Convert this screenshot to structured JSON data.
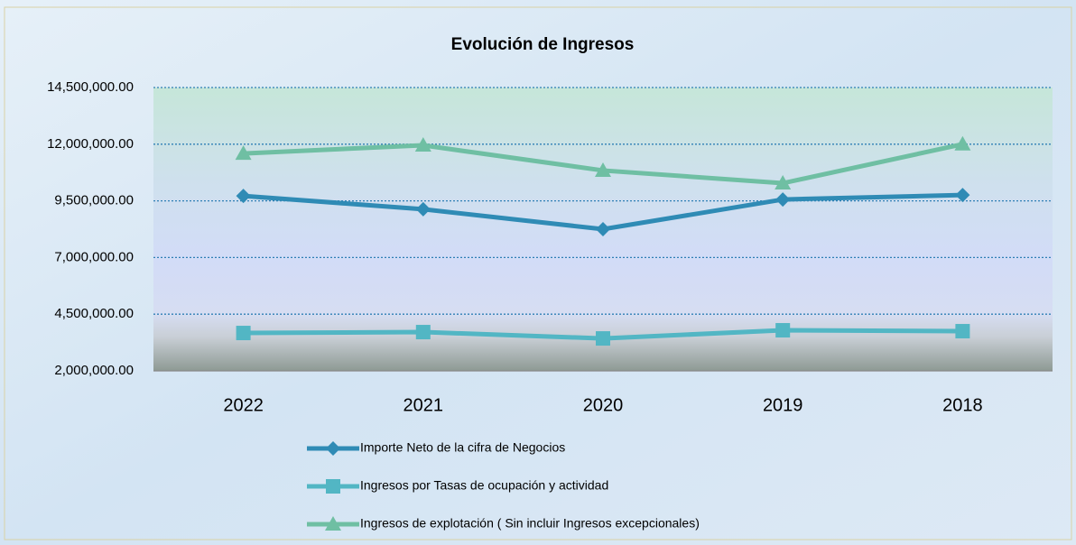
{
  "chart_data": {
    "type": "line",
    "title": "Evolución de Ingresos",
    "categories": [
      "2022",
      "2021",
      "2020",
      "2019",
      "2018"
    ],
    "series": [
      {
        "name": "Importe Neto de la cifra de Negocios",
        "color": "#2f8bb5",
        "marker": "diamond",
        "values": [
          9720000,
          9130000,
          8250000,
          9560000,
          9760000
        ]
      },
      {
        "name": "Ingresos por Tasas de ocupación y actividad",
        "color": "#52b6c4",
        "marker": "square",
        "values": [
          3670000,
          3710000,
          3430000,
          3790000,
          3750000
        ]
      },
      {
        "name": "Ingresos de explotación ( Sin incluir Ingresos excepcionales)",
        "color": "#6fbfa3",
        "marker": "triangle",
        "values": [
          11590000,
          11950000,
          10840000,
          10280000,
          12000000
        ]
      }
    ],
    "ylim": [
      2000000,
      14500000
    ],
    "yticks": [
      {
        "value": 2000000,
        "label": "2,000,000.00"
      },
      {
        "value": 4500000,
        "label": "4,500,000.00"
      },
      {
        "value": 7000000,
        "label": "7,000,000.00"
      },
      {
        "value": 9500000,
        "label": "9,500,000.00"
      },
      {
        "value": 12000000,
        "label": "12,000,000.00"
      },
      {
        "value": 14500000,
        "label": "14,500,000.00"
      }
    ],
    "grid": true,
    "legend": "bottom"
  }
}
